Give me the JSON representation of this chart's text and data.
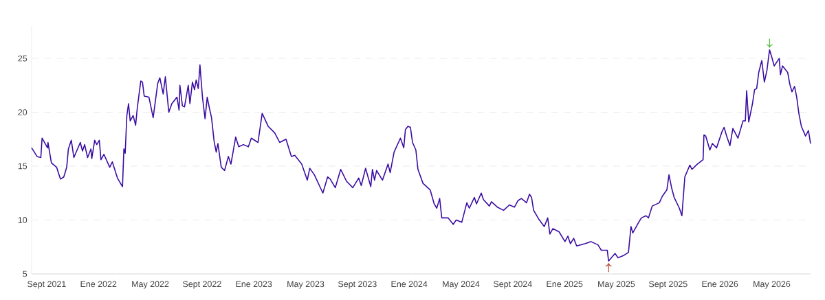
{
  "chart_data": {
    "type": "line",
    "x": [
      "2021-07-27",
      "2021-08-09",
      "2021-08-18",
      "2021-08-21",
      "2021-09-03",
      "2021-09-04",
      "2021-09-12",
      "2021-09-24",
      "2021-10-03",
      "2021-10-11",
      "2021-10-18",
      "2021-10-22",
      "2021-10-29",
      "2021-11-04",
      "2021-11-19",
      "2021-11-24",
      "2021-11-29",
      "2021-12-06",
      "2021-12-14",
      "2021-12-16",
      "2021-12-23",
      "2021-12-28",
      "2022-01-03",
      "2022-01-07",
      "2022-01-14",
      "2022-01-28",
      "2022-02-03",
      "2022-02-14",
      "2022-02-25",
      "2022-02-28",
      "2022-03-03",
      "2022-03-07",
      "2022-03-11",
      "2022-03-15",
      "2022-03-22",
      "2022-03-28",
      "2022-04-01",
      "2022-04-09",
      "2022-04-13",
      "2022-04-17",
      "2022-04-28",
      "2022-05-08",
      "2022-05-19",
      "2022-05-24",
      "2022-06-01",
      "2022-06-06",
      "2022-06-14",
      "2022-06-21",
      "2022-07-03",
      "2022-07-08",
      "2022-07-10",
      "2022-07-16",
      "2022-07-21",
      "2022-07-30",
      "2022-08-03",
      "2022-08-09",
      "2022-08-14",
      "2022-08-18",
      "2022-08-23",
      "2022-08-27",
      "2022-09-02",
      "2022-09-08",
      "2022-09-13",
      "2022-09-18",
      "2022-09-23",
      "2022-09-29",
      "2022-10-04",
      "2022-10-08",
      "2022-10-16",
      "2022-10-24",
      "2022-11-02",
      "2022-11-08",
      "2022-11-19",
      "2022-11-26",
      "2022-12-07",
      "2022-12-19",
      "2022-12-26",
      "2023-01-11",
      "2023-01-21",
      "2023-02-04",
      "2023-02-18",
      "2023-03-01",
      "2023-03-16",
      "2023-03-29",
      "2023-04-06",
      "2023-04-22",
      "2023-05-05",
      "2023-05-11",
      "2023-05-22",
      "2023-06-11",
      "2023-06-22",
      "2023-06-28",
      "2023-07-10",
      "2023-07-23",
      "2023-08-06",
      "2023-08-21",
      "2023-09-04",
      "2023-09-10",
      "2023-09-20",
      "2023-10-02",
      "2023-10-06",
      "2023-10-11",
      "2023-10-16",
      "2023-10-30",
      "2023-11-12",
      "2023-11-17",
      "2023-11-26",
      "2023-12-11",
      "2023-12-19",
      "2023-12-23",
      "2023-12-29",
      "2024-01-04",
      "2024-01-09",
      "2024-01-17",
      "2024-01-22",
      "2024-02-03",
      "2024-02-19",
      "2024-02-28",
      "2024-03-05",
      "2024-03-12",
      "2024-03-17",
      "2024-04-01",
      "2024-04-13",
      "2024-04-20",
      "2024-05-03",
      "2024-05-15",
      "2024-05-21",
      "2024-06-02",
      "2024-06-07",
      "2024-06-18",
      "2024-06-23",
      "2024-07-07",
      "2024-07-12",
      "2024-07-26",
      "2024-08-10",
      "2024-08-24",
      "2024-09-05",
      "2024-09-13",
      "2024-09-21",
      "2024-10-03",
      "2024-10-10",
      "2024-10-15",
      "2024-10-20",
      "2024-11-01",
      "2024-11-14",
      "2024-11-22",
      "2024-11-27",
      "2024-12-04",
      "2024-12-19",
      "2025-01-02",
      "2025-01-09",
      "2025-01-15",
      "2025-01-23",
      "2025-01-30",
      "2025-02-17",
      "2025-03-02",
      "2025-03-19",
      "2025-03-27",
      "2025-04-10",
      "2025-04-13",
      "2025-04-28",
      "2025-05-05",
      "2025-05-18",
      "2025-05-30",
      "2025-06-05",
      "2025-06-09",
      "2025-06-23",
      "2025-06-29",
      "2025-07-10",
      "2025-07-16",
      "2025-07-25",
      "2025-08-11",
      "2025-08-18",
      "2025-08-29",
      "2025-09-03",
      "2025-09-09",
      "2025-09-15",
      "2025-09-27",
      "2025-10-03",
      "2025-10-10",
      "2025-10-22",
      "2025-10-27",
      "2025-11-09",
      "2025-11-22",
      "2025-11-24",
      "2025-11-28",
      "2025-12-08",
      "2025-12-14",
      "2025-12-24",
      "2026-01-06",
      "2026-01-11",
      "2026-01-17",
      "2026-01-25",
      "2026-02-01",
      "2026-02-12",
      "2026-02-23",
      "2026-02-28",
      "2026-03-03",
      "2026-03-08",
      "2026-03-17",
      "2026-03-22",
      "2026-03-27",
      "2026-04-01",
      "2026-04-08",
      "2026-04-14",
      "2026-04-20",
      "2026-04-26",
      "2026-05-02",
      "2026-05-07",
      "2026-05-19",
      "2026-05-22",
      "2026-05-27",
      "2026-06-08",
      "2026-06-13",
      "2026-06-18",
      "2026-06-24",
      "2026-06-29",
      "2026-07-04",
      "2026-07-10",
      "2026-07-20",
      "2026-07-27",
      "2026-08-01"
    ],
    "series": [
      {
        "color": "#3a0ca3",
        "values": [
          16.7,
          15.9,
          15.8,
          17.6,
          16.7,
          17.2,
          15.3,
          14.9,
          13.8,
          14.0,
          14.9,
          16.6,
          17.4,
          15.8,
          17.2,
          16.4,
          17.0,
          15.8,
          16.6,
          15.7,
          17.4,
          17.0,
          17.4,
          15.6,
          16.1,
          14.9,
          15.4,
          13.9,
          13.1,
          16.6,
          16.2,
          19.7,
          20.8,
          19.2,
          19.7,
          18.8,
          20.4,
          22.9,
          22.8,
          21.5,
          21.4,
          19.5,
          22.7,
          23.2,
          21.7,
          23.3,
          20.0,
          20.8,
          21.4,
          20.2,
          22.5,
          20.6,
          20.5,
          22.5,
          20.8,
          22.8,
          22.1,
          23.0,
          22.2,
          24.4,
          21.4,
          19.4,
          21.4,
          20.4,
          19.5,
          17.3,
          16.3,
          17.1,
          14.9,
          14.6,
          15.9,
          15.2,
          17.7,
          16.8,
          17.0,
          16.8,
          17.6,
          17.2,
          19.9,
          18.7,
          18.1,
          17.2,
          17.5,
          15.9,
          16.0,
          15.2,
          13.7,
          14.8,
          14.2,
          12.5,
          14.0,
          13.8,
          13.0,
          14.7,
          13.6,
          13.0,
          13.9,
          13.2,
          14.8,
          13.1,
          14.7,
          13.7,
          14.6,
          13.7,
          15.2,
          14.4,
          16.3,
          17.6,
          16.7,
          18.4,
          18.7,
          18.6,
          17.2,
          16.5,
          14.7,
          13.4,
          12.8,
          11.5,
          11.1,
          12.0,
          10.2,
          10.2,
          9.6,
          10.0,
          9.8,
          11.6,
          11.1,
          12.1,
          11.5,
          12.5,
          11.9,
          11.3,
          11.7,
          11.2,
          10.9,
          11.4,
          11.2,
          11.8,
          12.0,
          11.6,
          12.4,
          12.1,
          10.9,
          10.1,
          9.4,
          10.2,
          8.7,
          9.2,
          8.9,
          8.0,
          8.5,
          7.8,
          8.3,
          7.6,
          7.8,
          8.0,
          7.7,
          7.2,
          7.2,
          6.2,
          6.9,
          6.5,
          6.7,
          7.0,
          9.4,
          8.8,
          9.8,
          10.2,
          10.4,
          10.2,
          11.3,
          11.6,
          12.2,
          12.8,
          14.2,
          13.0,
          12.1,
          11.1,
          10.4,
          14.0,
          15.1,
          14.7,
          15.2,
          15.6,
          17.9,
          17.8,
          16.5,
          17.1,
          16.7,
          18.2,
          18.6,
          17.8,
          16.9,
          18.5,
          17.6,
          19.2,
          19.2,
          22.0,
          19.1,
          20.8,
          22.1,
          22.2,
          23.7,
          24.8,
          22.8,
          23.9,
          25.8,
          25.0,
          24.3,
          25.0,
          23.5,
          24.3,
          23.7,
          22.6,
          21.9,
          22.4,
          21.4,
          19.9,
          18.7,
          17.8,
          18.3,
          17.1
        ]
      }
    ],
    "xlim": [
      "2021-07-27",
      "2026-08-01"
    ],
    "xticks": [
      {
        "value": "2021-09-01",
        "label": "Sept 2021"
      },
      {
        "value": "2022-01-01",
        "label": "Ene 2022"
      },
      {
        "value": "2022-05-01",
        "label": "May 2022"
      },
      {
        "value": "2022-09-01",
        "label": "Sept 2022"
      },
      {
        "value": "2023-01-01",
        "label": "Ene 2023"
      },
      {
        "value": "2023-05-01",
        "label": "May 2023"
      },
      {
        "value": "2023-09-01",
        "label": "Sept 2023"
      },
      {
        "value": "2024-01-01",
        "label": "Ene 2024"
      },
      {
        "value": "2024-05-01",
        "label": "May 2024"
      },
      {
        "value": "2024-09-01",
        "label": "Sept 2024"
      },
      {
        "value": "2025-01-01",
        "label": "Ene 2025"
      },
      {
        "value": "2025-05-01",
        "label": "May 2025"
      },
      {
        "value": "2025-09-01",
        "label": "Sept 2025"
      },
      {
        "value": "2026-01-01",
        "label": "Ene 2026"
      },
      {
        "value": "2026-05-01",
        "label": "May 2026"
      }
    ],
    "ylim": [
      5,
      28
    ],
    "yticks": [
      5,
      10,
      15,
      20,
      25
    ],
    "grid": "y"
  }
}
